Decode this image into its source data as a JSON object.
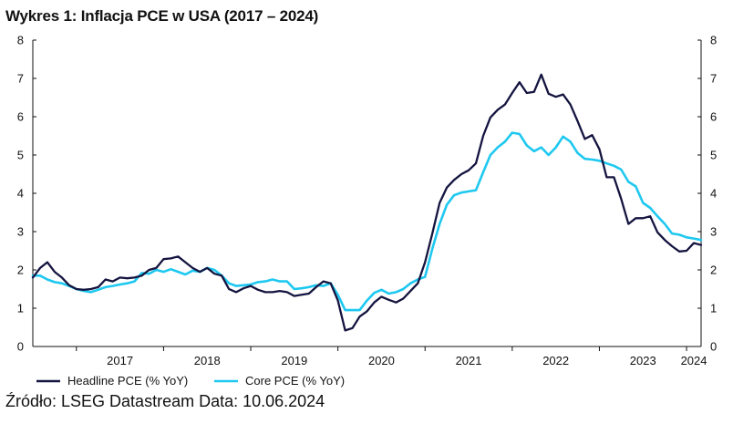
{
  "title": "Wykres 1: Inflacja PCE w USA (2017 – 2024)",
  "source": "Źródło: LSEG Datastream Data: 10.06.2024",
  "chart_data": {
    "type": "line",
    "title": "Wykres 1: Inflacja PCE w USA (2017 – 2024)",
    "xlabel": "",
    "ylabel": "",
    "ylim": [
      0,
      8
    ],
    "yticks": [
      "0",
      "1",
      "2",
      "3",
      "4",
      "5",
      "6",
      "7",
      "8"
    ],
    "xticks": [
      "2017",
      "2018",
      "2019",
      "2020",
      "2021",
      "2022",
      "2023",
      "2024"
    ],
    "x_start": "2016-07",
    "x_end": "2024-05",
    "grid": false,
    "legend": "bottom",
    "series": [
      {
        "name": "Headline PCE (% YoY)",
        "color": "#141440",
        "values": [
          1.8,
          2.05,
          2.2,
          1.95,
          1.8,
          1.6,
          1.5,
          1.48,
          1.5,
          1.55,
          1.75,
          1.7,
          1.8,
          1.78,
          1.8,
          1.85,
          2.0,
          2.05,
          2.28,
          2.3,
          2.35,
          2.2,
          2.05,
          1.95,
          2.05,
          1.9,
          1.85,
          1.5,
          1.42,
          1.52,
          1.58,
          1.48,
          1.42,
          1.42,
          1.45,
          1.42,
          1.32,
          1.35,
          1.38,
          1.55,
          1.7,
          1.65,
          1.2,
          0.42,
          0.48,
          0.78,
          0.92,
          1.15,
          1.3,
          1.22,
          1.15,
          1.25,
          1.45,
          1.65,
          2.2,
          2.95,
          3.75,
          4.15,
          4.35,
          4.5,
          4.6,
          4.78,
          5.5,
          5.98,
          6.18,
          6.32,
          6.62,
          6.9,
          6.62,
          6.65,
          7.1,
          6.6,
          6.52,
          6.58,
          6.32,
          5.88,
          5.42,
          5.52,
          5.15,
          4.42,
          4.42,
          3.85,
          3.2,
          3.35,
          3.35,
          3.4,
          2.98,
          2.78,
          2.62,
          2.48,
          2.5,
          2.7,
          2.65
        ]
      },
      {
        "name": "Core PCE (% YoY)",
        "color": "#1ec8f0",
        "values": [
          1.85,
          1.85,
          1.75,
          1.68,
          1.65,
          1.58,
          1.5,
          1.45,
          1.42,
          1.48,
          1.55,
          1.58,
          1.62,
          1.65,
          1.7,
          1.92,
          1.9,
          2.0,
          1.95,
          2.02,
          1.95,
          1.88,
          1.98,
          1.95,
          2.05,
          2.0,
          1.85,
          1.65,
          1.58,
          1.6,
          1.62,
          1.68,
          1.7,
          1.75,
          1.7,
          1.7,
          1.5,
          1.52,
          1.55,
          1.6,
          1.58,
          1.65,
          1.35,
          0.95,
          0.95,
          0.95,
          1.2,
          1.4,
          1.48,
          1.38,
          1.42,
          1.5,
          1.65,
          1.75,
          1.82,
          2.55,
          3.2,
          3.7,
          3.95,
          4.02,
          4.05,
          4.08,
          4.55,
          5.0,
          5.2,
          5.35,
          5.58,
          5.55,
          5.25,
          5.1,
          5.2,
          5.0,
          5.2,
          5.48,
          5.35,
          5.05,
          4.9,
          4.88,
          4.85,
          4.78,
          4.72,
          4.62,
          4.3,
          4.18,
          3.75,
          3.62,
          3.4,
          3.2,
          2.95,
          2.92,
          2.85,
          2.82,
          2.78
        ]
      }
    ]
  }
}
